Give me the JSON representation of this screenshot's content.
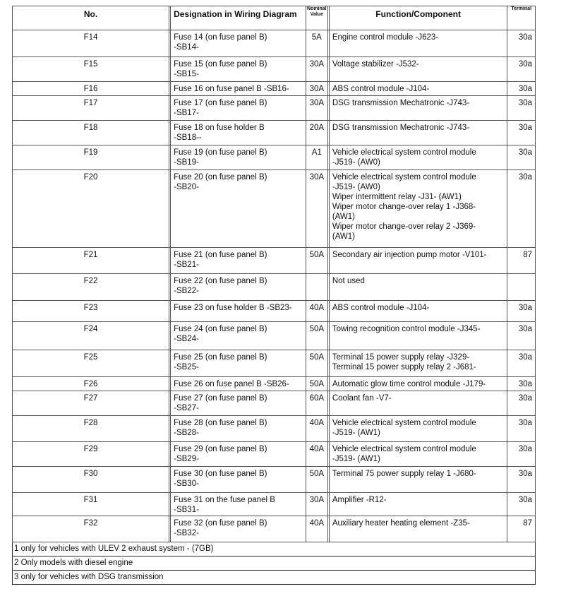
{
  "headers": {
    "no": "No.",
    "designation": "Designation in Wiring Diagram",
    "value": "Nominal Value",
    "function": "Function/Component",
    "terminal": "Terminal"
  },
  "rows": [
    {
      "no": "F14",
      "designation": "Fuse 14 (on fuse panel B)\n-SB14-",
      "value": "5A",
      "function": "Engine control module -J623-",
      "terminal": "30a"
    },
    {
      "no": "F15",
      "designation": "Fuse 15 (on fuse panel B)\n-SB15-",
      "value": "30A",
      "function": "Voltage stabilizer -J532-",
      "terminal": "30a"
    },
    {
      "no": "F16",
      "designation": "Fuse 16 on fuse panel B -SB16-",
      "value": "30A",
      "function": "ABS control module -J104-",
      "terminal": "30a"
    },
    {
      "no": "F17",
      "designation": "Fuse 17 (on fuse panel B)\n-SB17-",
      "value": "30A",
      "function": "DSG transmission Mechatronic -J743-",
      "terminal": "30a"
    },
    {
      "no": "F18",
      "designation": "Fuse 18 on fuse holder B\n-SB18--",
      "value": "20A",
      "function": "DSG transmission Mechatronic -J743-",
      "terminal": "30a"
    },
    {
      "no": "F19",
      "designation": "Fuse 19 (on fuse panel B)\n-SB19-",
      "value": "A1",
      "function": "Vehicle electrical system control module\n-J519- (AW0)",
      "terminal": "30a"
    },
    {
      "no": "F20",
      "designation": "Fuse 20 (on fuse panel B)\n-SB20-",
      "value": "30A",
      "function": "Vehicle electrical system control module\n-J519- (AW0)\nWiper intermittent relay -J31- (AW1)\nWiper motor change-over relay 1 -J368-\n(AW1)\nWiper motor change-over relay 2 -J369-\n(AW1)",
      "terminal": "30a"
    },
    {
      "no": "F21",
      "designation": "Fuse 21 (on fuse panel B)\n-SB21-",
      "value": "50A",
      "function": "Secondary air injection pump motor -V101-",
      "terminal": "87"
    },
    {
      "no": "F22",
      "designation": "Fuse 22 (on fuse panel B)\n-SB22-",
      "value": "",
      "function": "Not used",
      "terminal": ""
    },
    {
      "no": "F23",
      "designation": "Fuse 23 on fuse holder B -SB23-",
      "value": "40A",
      "function": "ABS control module -J104-",
      "terminal": "30a"
    },
    {
      "no": "F24",
      "designation": "Fuse 24 (on fuse panel B)\n-SB24-",
      "value": "50A",
      "function": "Towing recognition control module -J345-",
      "terminal": "30a"
    },
    {
      "no": "F25",
      "designation": "Fuse 25 (on fuse panel B)\n-SB25-",
      "value": "50A",
      "function": "Terminal 15 power supply relay -J329-\nTerminal 15 power supply relay 2 -J681-",
      "terminal": "30a"
    },
    {
      "no": "F26",
      "designation": "Fuse 26 on fuse panel B -SB26-",
      "value": "50A",
      "function": "Automatic glow time control module -J179-",
      "terminal": "30a"
    },
    {
      "no": "F27",
      "designation": "Fuse 27 (on fuse panel B)\n-SB27-",
      "value": "60A",
      "function": "Coolant fan -V7-",
      "terminal": "30a"
    },
    {
      "no": "F28",
      "designation": "Fuse 28 (on fuse panel B)\n-SB28-",
      "value": "40A",
      "function": "Vehicle electrical system control module\n-J519- (AW1)",
      "terminal": "30a"
    },
    {
      "no": "F29",
      "designation": "Fuse 29 (on fuse panel B)\n-SB29-",
      "value": "40A",
      "function": "Vehicle electrical system control module\n-J519- (AW1)",
      "terminal": "30a"
    },
    {
      "no": "F30",
      "designation": "Fuse 30 (on fuse panel B)\n-SB30-",
      "value": "50A",
      "function": "Terminal 75 power supply relay 1 -J680-",
      "terminal": "30a"
    },
    {
      "no": "F31",
      "designation": "Fuse 31 on the fuse panel B\n-SB31-",
      "value": "30A",
      "function": "Amplifier -R12-",
      "terminal": "30a"
    },
    {
      "no": "F32",
      "designation": "Fuse 32 (on fuse panel B)\n-SB32-",
      "value": "40A",
      "function": "Auxiliary heater heating element -Z35-",
      "terminal": "87"
    }
  ],
  "footnotes": [
    "1 only for vehicles with ULEV 2 exhaust system - (7GB)",
    "2 Only models with diesel engine",
    "3 only for vehicles with DSG transmission"
  ]
}
